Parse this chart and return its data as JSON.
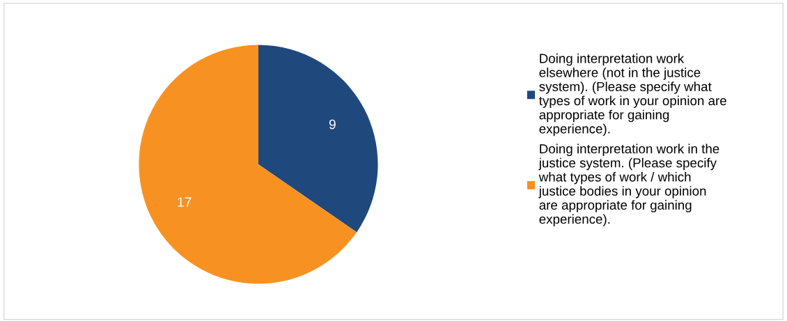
{
  "chart_data": {
    "type": "pie",
    "categories": [
      "Doing interpretation work elsewhere (not in the justice system). (Please specify what types of work in your opinion are appropriate for gaining experience).",
      "Doing interpretation work in the justice system. (Please specify what types of work / which justice bodies in your opinion are appropriate for gaining experience)."
    ],
    "values": [
      9,
      17
    ],
    "colors": [
      "#1f497d",
      "#f79222"
    ],
    "data_labels": true,
    "legend": "right"
  }
}
